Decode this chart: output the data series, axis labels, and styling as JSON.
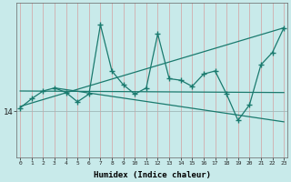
{
  "xlabel": "Humidex (Indice chaleur)",
  "bg_color": "#c8eaea",
  "line_color": "#1a7a6e",
  "ytick_label": "14",
  "ytick_value": 14.0,
  "x_values": [
    0,
    1,
    2,
    3,
    4,
    5,
    6,
    7,
    8,
    9,
    10,
    11,
    12,
    13,
    14,
    15,
    16,
    17,
    18,
    19,
    20,
    21,
    22,
    23
  ],
  "main_line_y": [
    14.1,
    14.4,
    14.65,
    14.75,
    14.6,
    14.3,
    14.55,
    16.8,
    15.3,
    14.85,
    14.55,
    14.75,
    16.5,
    15.05,
    15.0,
    14.8,
    15.2,
    15.3,
    14.55,
    13.7,
    14.2,
    15.5,
    15.9,
    16.7
  ],
  "trend1_x": [
    0,
    23
  ],
  "trend1_y": [
    14.15,
    16.7
  ],
  "trend2_x": [
    0,
    23
  ],
  "trend2_y": [
    14.65,
    14.6
  ],
  "trend3_x": [
    3,
    23
  ],
  "trend3_y": [
    14.75,
    13.65
  ],
  "xlim": [
    -0.3,
    23.3
  ],
  "ylim": [
    12.5,
    17.5
  ],
  "figsize": [
    3.2,
    2.0
  ],
  "dpi": 100
}
